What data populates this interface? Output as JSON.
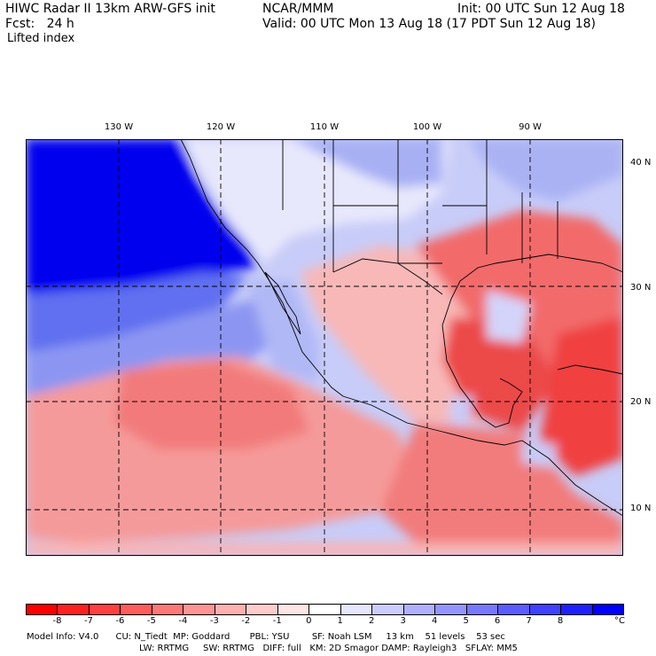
{
  "header": {
    "model": "HIWC Radar II 13km ARW-GFS init",
    "forecast": "Fcst:   24 h",
    "field": "Lifted index",
    "org": "NCAR/MMM",
    "init": "Init: 00 UTC Sun 12 Aug 18",
    "valid": "Valid: 00 UTC Mon 13 Aug 18 (17 PDT Sun 12 Aug 18)"
  },
  "map": {
    "lon_labels": [
      "130 W",
      "120 W",
      "110 W",
      "100 W",
      "90 W"
    ],
    "lat_labels": [
      "40 N",
      "30 N",
      "20 N",
      "10 N"
    ],
    "ocean_stable_color": "#0000ee",
    "unstable_color": "#f04040"
  },
  "colorbar": {
    "ticks": [
      "-8",
      "-7",
      "-6",
      "-5",
      "-4",
      "-3",
      "-2",
      "-1",
      "0",
      "1",
      "2",
      "3",
      "4",
      "5",
      "6",
      "7",
      "8"
    ],
    "unit": "°C",
    "colors": [
      "#ff0000",
      "#ff2020",
      "#ff4040",
      "#ff5c5c",
      "#ff7878",
      "#ff9494",
      "#ffb0b0",
      "#ffcccc",
      "#ffe6e6",
      "#ffffff",
      "#e6e6ff",
      "#ccccff",
      "#b0b0ff",
      "#9494ff",
      "#7878ff",
      "#5c5cff",
      "#4040ff",
      "#2020ff",
      "#0000ff"
    ]
  },
  "footer": {
    "line1": "Model Info: V4.0      CU: N_Tiedt  MP: Goddard       PBL: YSU        SF: Noah LSM     13 km    51 levels    53 sec",
    "line2": "LW: RRTMG     SW: RRTMG   DIFF: full   KM: 2D Smagor DAMP: Rayleigh3   SFLAY: MM5"
  }
}
